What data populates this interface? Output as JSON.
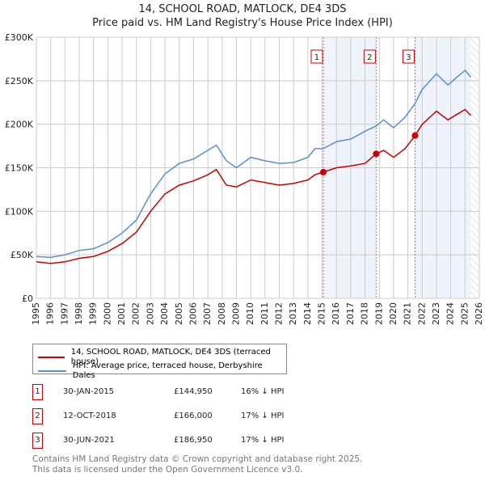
{
  "chart_data": {
    "type": "line",
    "title": "14, SCHOOL ROAD, MATLOCK, DE4 3DS",
    "subtitle": "Price paid vs. HM Land Registry's House Price Index (HPI)",
    "xlim": [
      1995,
      2026
    ],
    "ylim": [
      0,
      300000
    ],
    "y_ticks": [
      {
        "v": 0,
        "label": "£0"
      },
      {
        "v": 50000,
        "label": "£50K"
      },
      {
        "v": 100000,
        "label": "£100K"
      },
      {
        "v": 150000,
        "label": "£150K"
      },
      {
        "v": 200000,
        "label": "£200K"
      },
      {
        "v": 250000,
        "label": "£250K"
      },
      {
        "v": 300000,
        "label": "£300K"
      }
    ],
    "x_ticks": [
      "1995",
      "1996",
      "1997",
      "1998",
      "1999",
      "2000",
      "2001",
      "2002",
      "2003",
      "2004",
      "2005",
      "2006",
      "2007",
      "2008",
      "2009",
      "2010",
      "2011",
      "2012",
      "2013",
      "2014",
      "2015",
      "2016",
      "2017",
      "2018",
      "2019",
      "2020",
      "2021",
      "2022",
      "2023",
      "2024",
      "2025",
      "2026"
    ],
    "grid": true,
    "series": [
      {
        "name": "14, SCHOOL ROAD, MATLOCK, DE4 3DS (terraced house)",
        "color": "#cc0000",
        "x": [
          1995,
          1996,
          1997,
          1998,
          1999,
          2000,
          2001,
          2002,
          2003,
          2004,
          2005,
          2006,
          2007,
          2007.6,
          2008.3,
          2009,
          2010,
          2011,
          2012,
          2013,
          2014,
          2014.5,
          2015.08,
          2016,
          2017,
          2018,
          2018.78,
          2019.3,
          2020,
          2020.8,
          2021.5,
          2022,
          2023,
          2023.8,
          2024.5,
          2025,
          2025.4
        ],
        "y": [
          42000,
          40000,
          42000,
          46000,
          48000,
          54000,
          63000,
          76000,
          100000,
          120000,
          130000,
          135000,
          142000,
          148000,
          130000,
          128000,
          136000,
          133000,
          130000,
          132000,
          136000,
          142000,
          144950,
          150000,
          152000,
          155000,
          166000,
          170000,
          162000,
          172000,
          186950,
          200000,
          215000,
          205000,
          212000,
          217000,
          210000
        ]
      },
      {
        "name": "HPI: Average price, terraced house, Derbyshire Dales",
        "color": "#5b8fd4",
        "x": [
          1995,
          1996,
          1997,
          1998,
          1999,
          2000,
          2001,
          2002,
          2003,
          2004,
          2005,
          2006,
          2007,
          2007.6,
          2008.3,
          2009,
          2010,
          2011,
          2012,
          2013,
          2014,
          2014.5,
          2015.08,
          2016,
          2017,
          2018,
          2018.78,
          2019.3,
          2020,
          2020.8,
          2021.5,
          2022,
          2023,
          2023.8,
          2024.5,
          2025,
          2025.4
        ],
        "y": [
          48000,
          47000,
          50000,
          55000,
          57000,
          64000,
          75000,
          90000,
          120000,
          143000,
          155000,
          160000,
          170000,
          176000,
          158000,
          150000,
          162000,
          158000,
          155000,
          156000,
          162000,
          172000,
          172000,
          180000,
          183000,
          192000,
          198000,
          205000,
          196000,
          208000,
          224000,
          240000,
          258000,
          245000,
          255000,
          262000,
          254000
        ]
      }
    ],
    "sales": [
      {
        "id": "1",
        "x": 2015.08,
        "date": "30-JAN-2015",
        "price": "£144,950",
        "value": 144950,
        "hpi": "16% ↓ HPI"
      },
      {
        "id": "2",
        "x": 2018.78,
        "date": "12-OCT-2018",
        "price": "£166,000",
        "value": 166000,
        "hpi": "17% ↓ HPI"
      },
      {
        "id": "3",
        "x": 2021.5,
        "date": "30-JUN-2021",
        "price": "£186,950",
        "value": 186950,
        "hpi": "17% ↓ HPI"
      }
    ],
    "shaded": [
      [
        2015.08,
        2018.78
      ],
      [
        2021.5,
        2025.4
      ]
    ],
    "hatched_from": 2025.4
  },
  "footer": [
    "Contains HM Land Registry data © Crown copyright and database right 2025.",
    "This data is licensed under the Open Government Licence v3.0."
  ]
}
